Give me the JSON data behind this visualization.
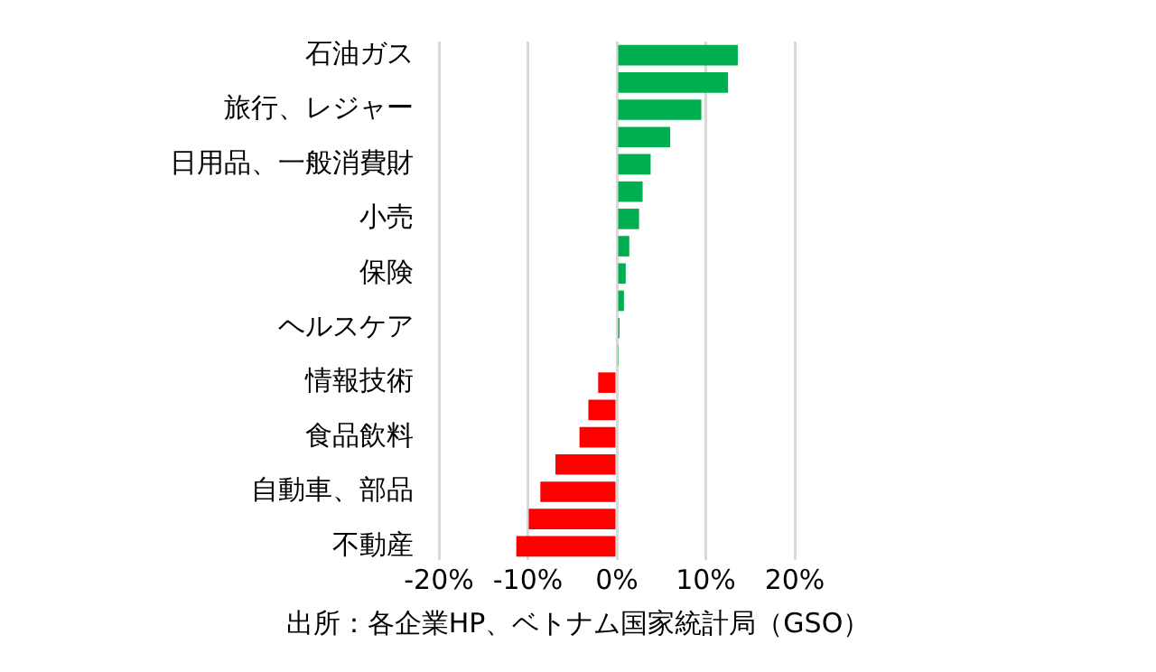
{
  "chart_data": {
    "type": "bar",
    "orientation": "horizontal",
    "categories": [
      "石油ガス",
      null,
      "旅行、レジャー",
      null,
      "日用品、一般消費財",
      null,
      "小売",
      null,
      "保険",
      null,
      "ヘルスケア",
      null,
      "情報技術",
      null,
      "食品飲料",
      null,
      "自動車、部品",
      null,
      "不動産"
    ],
    "values": [
      13.6,
      12.5,
      9.5,
      6.0,
      3.8,
      2.9,
      2.5,
      1.4,
      1.0,
      0.8,
      0.3,
      0.1,
      -2.1,
      -3.2,
      -4.2,
      -6.9,
      -8.6,
      -9.9,
      -11.3
    ],
    "colors": [
      "#00b050",
      "#00b050",
      "#00b050",
      "#00b050",
      "#00b050",
      "#00b050",
      "#00b050",
      "#00b050",
      "#00b050",
      "#00b050",
      "#00b050",
      "#00b050",
      "#ff0000",
      "#ff0000",
      "#ff0000",
      "#ff0000",
      "#ff0000",
      "#ff0000",
      "#ff0000"
    ],
    "xlim": [
      -20,
      20
    ],
    "xticks": [
      {
        "value": -20,
        "label": "-20%"
      },
      {
        "value": -10,
        "label": "-10%"
      },
      {
        "value": 0,
        "label": "0%"
      },
      {
        "value": 10,
        "label": "10%"
      },
      {
        "value": 20,
        "label": "20%"
      }
    ],
    "grid": "x",
    "legend": false,
    "annotations": [
      "出所：各企業HP、ベトナム国家統計局（GSO）"
    ]
  }
}
